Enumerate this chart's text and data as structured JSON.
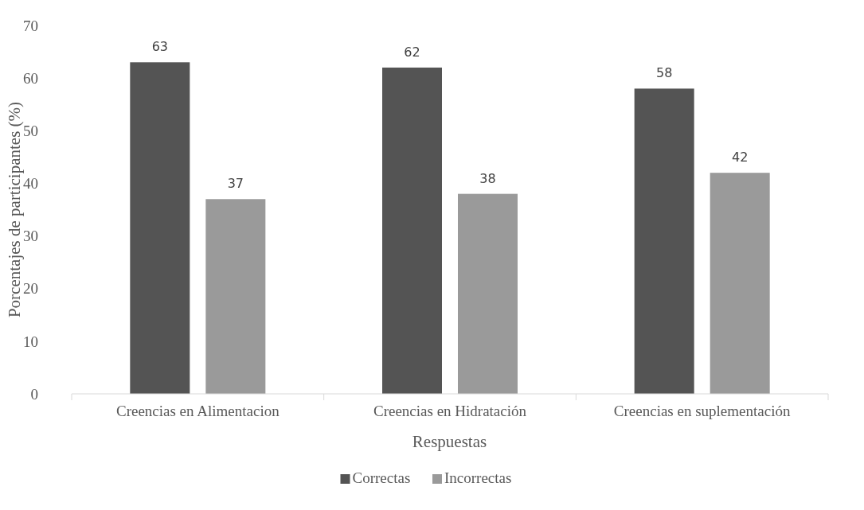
{
  "chart_data": {
    "type": "bar",
    "xlabel": "Respuestas",
    "ylabel": "Porcentajes de participantes (%)",
    "categories": [
      "Creencias en Alimentacion",
      "Creencias en Hidratación",
      "Creencias en suplementación"
    ],
    "series": [
      {
        "name": "Correctas",
        "color": "#545454",
        "values": [
          63,
          62,
          58
        ]
      },
      {
        "name": "Incorrectas",
        "color": "#9a9a9a",
        "values": [
          37,
          38,
          42
        ]
      }
    ],
    "ylim": [
      0,
      70
    ],
    "yticks": [
      0,
      10,
      20,
      30,
      40,
      50,
      60,
      70
    ],
    "grid": false,
    "legend": "bottom",
    "data_labels": true
  }
}
